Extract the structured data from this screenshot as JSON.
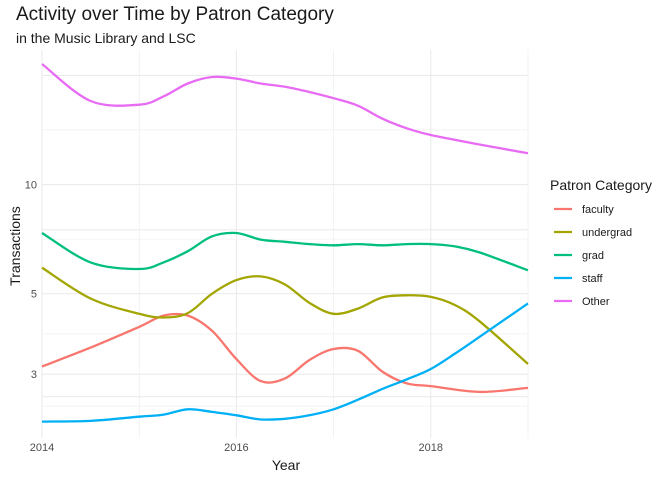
{
  "chart_data": {
    "type": "line",
    "title": "Activity over Time by Patron Category",
    "subtitle": "in the Music Library and LSC",
    "xlabel": "Year",
    "ylabel": "Transactions",
    "y_scale": "log",
    "xlim": [
      2014,
      2019
    ],
    "ylim": [
      2.0,
      23.5
    ],
    "x_ticks": [
      2014,
      2016,
      2018
    ],
    "y_ticks": [
      3,
      5,
      10
    ],
    "grid": true,
    "legend": {
      "title": "Patron Category",
      "position": "right"
    },
    "series": [
      {
        "name": "faculty",
        "color": "#F8766D",
        "x": [
          2014,
          2014.5,
          2015,
          2015.25,
          2015.5,
          2015.75,
          2016,
          2016.25,
          2016.5,
          2016.75,
          2017,
          2017.25,
          2017.5,
          2017.75,
          2018,
          2018.5,
          2019
        ],
        "y": [
          3.15,
          3.55,
          4.05,
          4.35,
          4.35,
          3.95,
          3.3,
          2.87,
          2.92,
          3.28,
          3.52,
          3.48,
          3.05,
          2.83,
          2.78,
          2.68,
          2.75
        ]
      },
      {
        "name": "undergrad",
        "color": "#A3A500",
        "x": [
          2014,
          2014.5,
          2015,
          2015.25,
          2015.5,
          2015.75,
          2016,
          2016.25,
          2016.5,
          2016.75,
          2017,
          2017.25,
          2017.5,
          2017.75,
          2018,
          2018.25,
          2018.5,
          2019
        ],
        "y": [
          5.9,
          4.85,
          4.4,
          4.3,
          4.42,
          5.0,
          5.45,
          5.58,
          5.3,
          4.72,
          4.4,
          4.55,
          4.88,
          4.95,
          4.9,
          4.65,
          4.2,
          3.2
        ]
      },
      {
        "name": "grad",
        "color": "#00BF7D",
        "x": [
          2014,
          2014.5,
          2015,
          2015.25,
          2015.5,
          2015.75,
          2016,
          2016.25,
          2016.5,
          2016.75,
          2017,
          2017.25,
          2017.5,
          2017.75,
          2018,
          2018.25,
          2018.5,
          2019
        ],
        "y": [
          7.35,
          6.1,
          5.85,
          6.1,
          6.55,
          7.2,
          7.35,
          7.05,
          6.95,
          6.85,
          6.8,
          6.85,
          6.8,
          6.85,
          6.85,
          6.75,
          6.5,
          5.8
        ]
      },
      {
        "name": "staff",
        "color": "#00B0F6",
        "x": [
          2014,
          2014.5,
          2015,
          2015.25,
          2015.5,
          2015.75,
          2016,
          2016.25,
          2016.5,
          2016.75,
          2017,
          2017.25,
          2017.5,
          2017.75,
          2018,
          2018.25,
          2018.5,
          2019
        ],
        "y": [
          2.22,
          2.23,
          2.29,
          2.32,
          2.4,
          2.36,
          2.31,
          2.25,
          2.26,
          2.31,
          2.4,
          2.55,
          2.73,
          2.9,
          3.1,
          3.42,
          3.8,
          4.7
        ]
      },
      {
        "name": "Other",
        "color": "#E76BF3",
        "x": [
          2014,
          2014.5,
          2015,
          2015.25,
          2015.5,
          2015.75,
          2016,
          2016.25,
          2016.5,
          2016.75,
          2017,
          2017.25,
          2017.5,
          2017.75,
          2018,
          2018.5,
          2019
        ],
        "y": [
          21.5,
          17.0,
          16.6,
          17.5,
          19.0,
          19.8,
          19.6,
          19.0,
          18.6,
          18.0,
          17.3,
          16.5,
          15.2,
          14.3,
          13.7,
          12.9,
          12.2
        ]
      }
    ]
  }
}
